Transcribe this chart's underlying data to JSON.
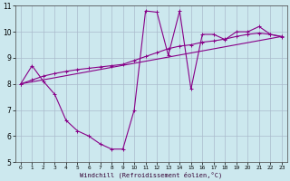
{
  "xlabel": "Windchill (Refroidissement éolien,°C)",
  "xlim": [
    -0.5,
    23.5
  ],
  "ylim": [
    5,
    11
  ],
  "yticks": [
    5,
    6,
    7,
    8,
    9,
    10,
    11
  ],
  "xticks": [
    0,
    1,
    2,
    3,
    4,
    5,
    6,
    7,
    8,
    9,
    10,
    11,
    12,
    13,
    14,
    15,
    16,
    17,
    18,
    19,
    20,
    21,
    22,
    23
  ],
  "bg_color": "#cce8ee",
  "grid_color": "#aabbcc",
  "line_color": "#880088",
  "line1_x": [
    0,
    1,
    2,
    3,
    4,
    5,
    6,
    7,
    8,
    9,
    10,
    11,
    12,
    13,
    14,
    15,
    16,
    17,
    18,
    19,
    20,
    21,
    22,
    23
  ],
  "line1_y": [
    8.0,
    8.7,
    8.1,
    7.6,
    6.6,
    6.2,
    6.0,
    5.7,
    5.5,
    5.5,
    7.0,
    10.8,
    10.75,
    9.1,
    10.8,
    7.8,
    9.9,
    9.9,
    9.7,
    10.0,
    10.0,
    10.2,
    9.9,
    9.8
  ],
  "line2_x": [
    0,
    1,
    2,
    3,
    4,
    5,
    6,
    7,
    8,
    9,
    10,
    11,
    12,
    13,
    14,
    15,
    16,
    17,
    18,
    19,
    20,
    21,
    22,
    23
  ],
  "line2_y": [
    8.0,
    8.15,
    8.3,
    8.4,
    8.48,
    8.55,
    8.6,
    8.65,
    8.7,
    8.75,
    8.9,
    9.05,
    9.2,
    9.35,
    9.45,
    9.5,
    9.6,
    9.65,
    9.72,
    9.82,
    9.9,
    9.95,
    9.9,
    9.82
  ],
  "line3_x": [
    0,
    23
  ],
  "line3_y": [
    8.0,
    9.82
  ]
}
